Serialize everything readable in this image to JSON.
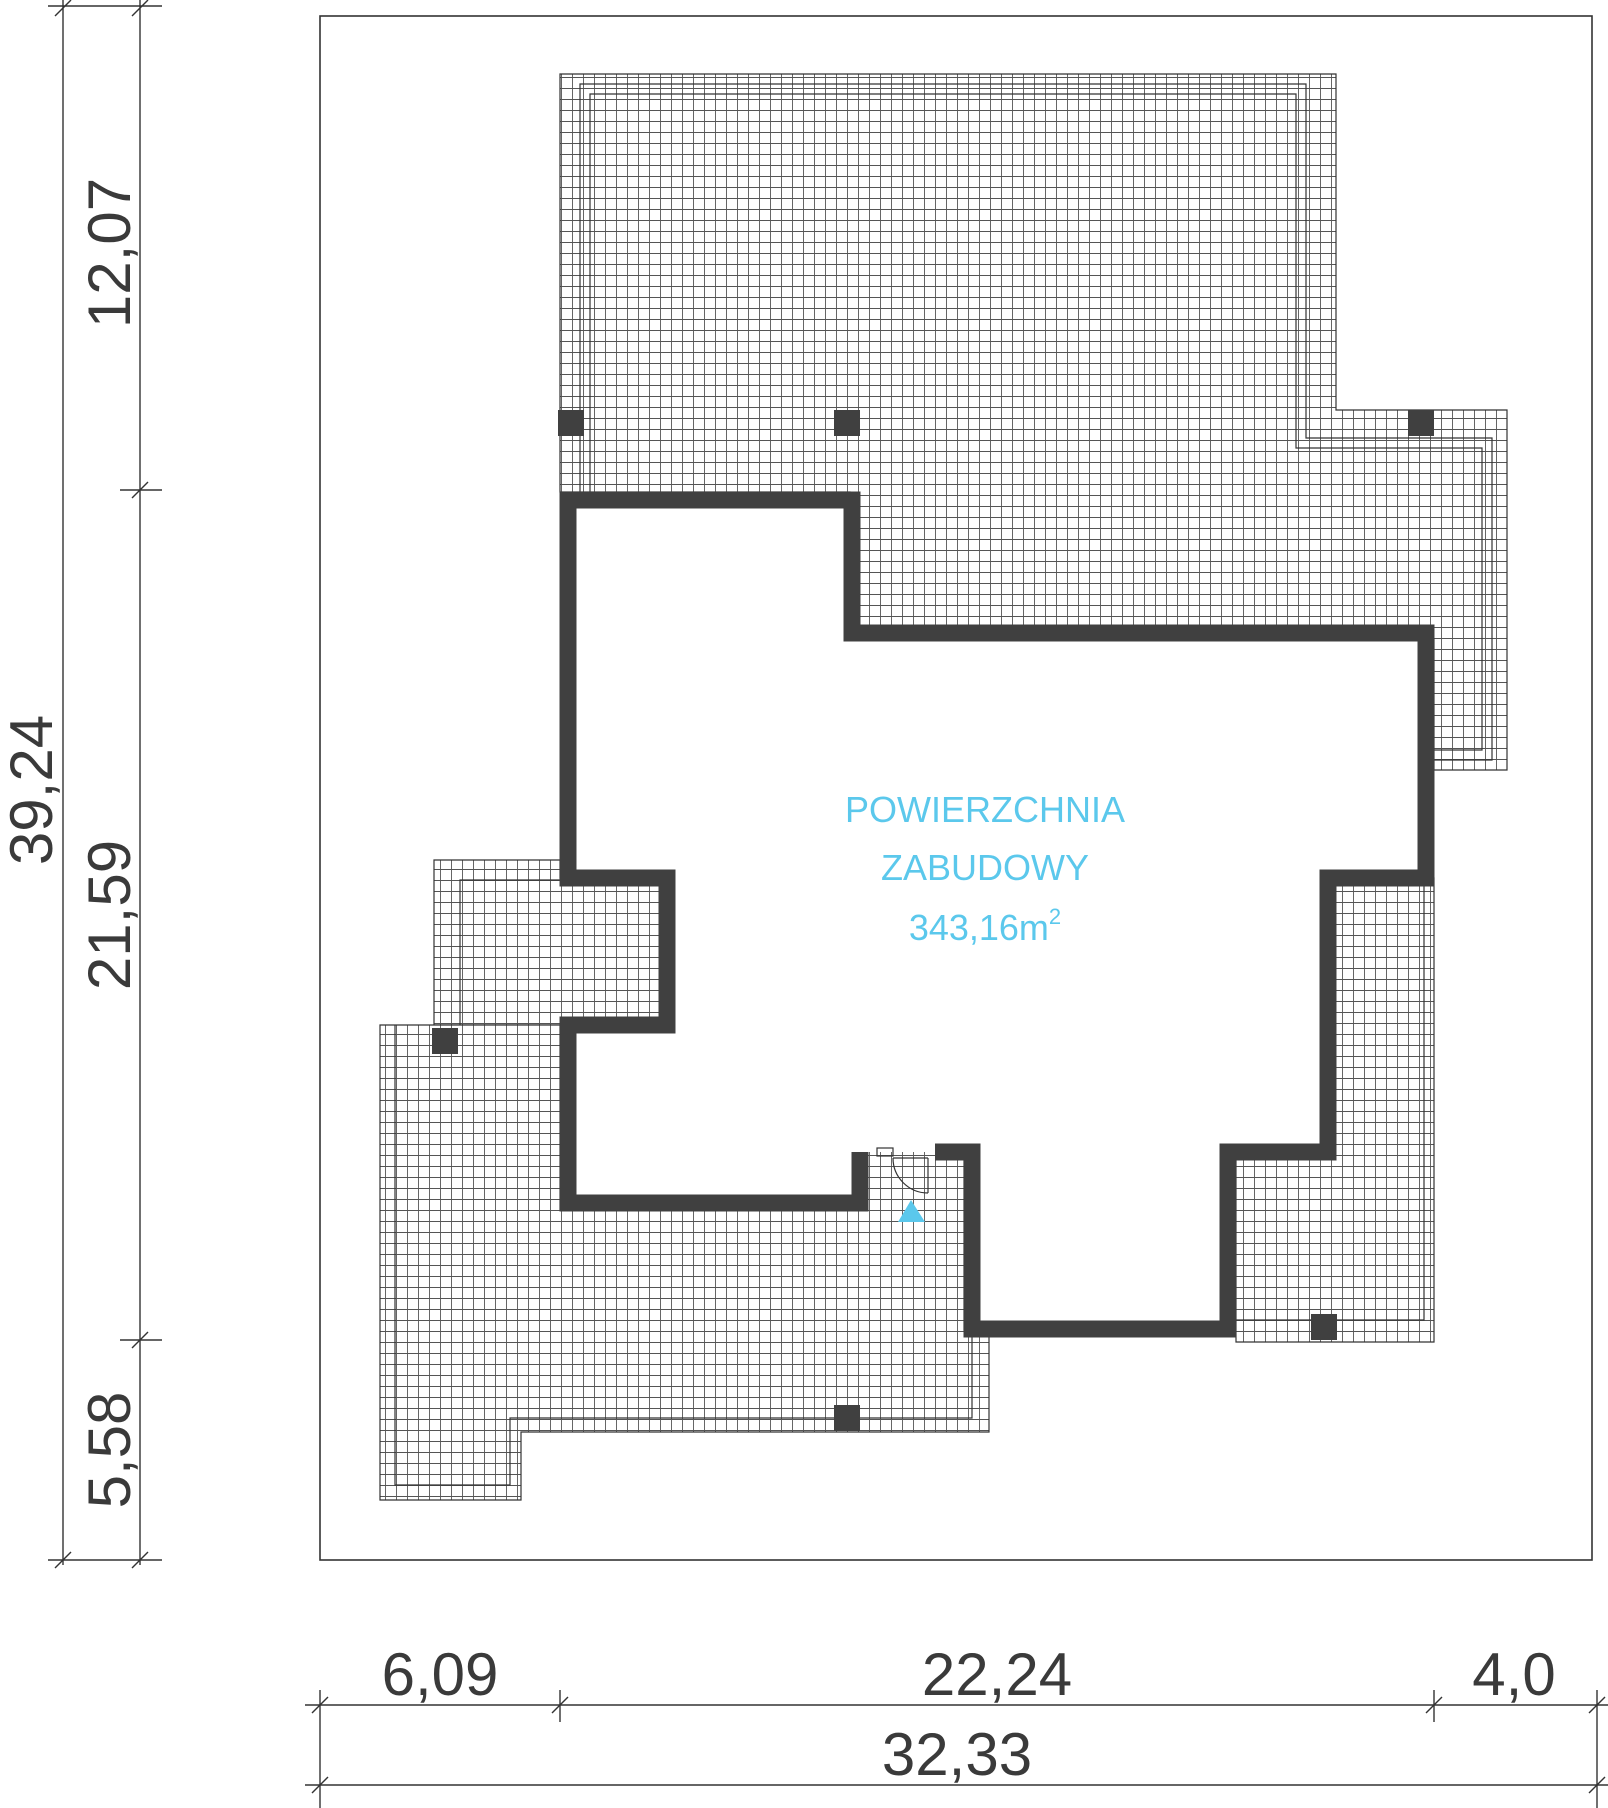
{
  "colors": {
    "background": "#ffffff",
    "line": "#333333",
    "wall": "#404040",
    "hatch": "#555555",
    "accent": "#5bc8ec"
  },
  "area_label": {
    "line1": "POWIERZCHNIA",
    "line2": "ZABUDOWY",
    "value": "343,16m",
    "value_sup": "2"
  },
  "dimensions": {
    "vertical_total": "39,24",
    "vertical_top": "12,07",
    "vertical_middle": "21,59",
    "vertical_bottom": "5,58",
    "horizontal_left": "6,09",
    "horizontal_middle": "22,24",
    "horizontal_right": "4,0",
    "horizontal_total": "32,33"
  },
  "icons": {
    "entrance": "entrance-arrow-icon",
    "door": "door-swing-icon"
  }
}
